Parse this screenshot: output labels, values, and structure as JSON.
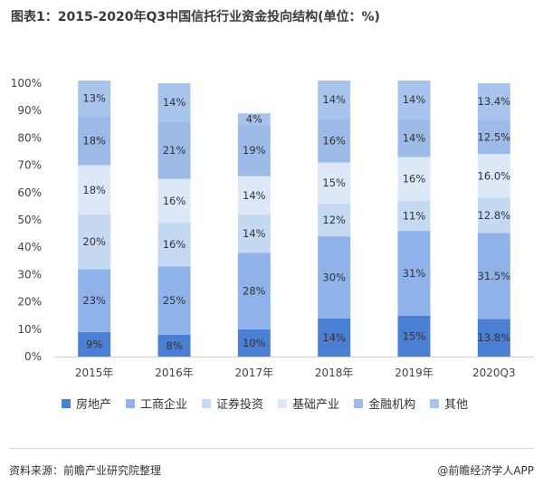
{
  "title": "图表1：2015-2020年Q3中国信托行业资金投向结构(单位：%)",
  "source": "资料来源：前瞻产业研究院整理",
  "brand": "@前瞻经济学人APP",
  "chart_data": {
    "type": "bar",
    "stacked": true,
    "categories": [
      "2015年",
      "2016年",
      "2017年",
      "2018年",
      "2019年",
      "2020Q3"
    ],
    "ylim": [
      0,
      100
    ],
    "yticks": [
      "0%",
      "10%",
      "20%",
      "30%",
      "40%",
      "50%",
      "60%",
      "70%",
      "80%",
      "90%",
      "100%"
    ],
    "legend_position": "bottom",
    "series": [
      {
        "name": "房地产",
        "color": "#4a7fd4",
        "values": [
          9,
          8,
          10,
          14,
          15,
          13.8
        ],
        "labels": [
          "9%",
          "8%",
          "10%",
          "14%",
          "15%",
          "13.8%"
        ]
      },
      {
        "name": "工商企业",
        "color": "#8fb2ea",
        "values": [
          23,
          25,
          28,
          30,
          31,
          31.5
        ],
        "labels": [
          "23%",
          "25%",
          "28%",
          "30%",
          "31%",
          "31.5%"
        ]
      },
      {
        "name": "证券投资",
        "color": "#c5d9f3",
        "values": [
          20,
          16,
          14,
          12,
          11,
          12.8
        ],
        "labels": [
          "20%",
          "16%",
          "14%",
          "12%",
          "11%",
          "12.8%"
        ]
      },
      {
        "name": "基础产业",
        "color": "#dce8f8",
        "values": [
          18,
          16,
          14,
          15,
          16,
          16.0
        ],
        "labels": [
          "18%",
          "16%",
          "14%",
          "15%",
          "16%",
          "16.0%"
        ]
      },
      {
        "name": "金融机构",
        "color": "#9dbbe8",
        "values": [
          18,
          21,
          19,
          16,
          14,
          12.5
        ],
        "labels": [
          "18%",
          "21%",
          "19%",
          "16%",
          "14%",
          "12.5%"
        ]
      },
      {
        "name": "其他",
        "color": "#a9c4ec",
        "values": [
          13,
          14,
          4,
          14,
          14,
          13.4
        ],
        "labels": [
          "13%",
          "14%",
          "4%",
          "14%",
          "14%",
          "13.4%"
        ]
      }
    ]
  }
}
